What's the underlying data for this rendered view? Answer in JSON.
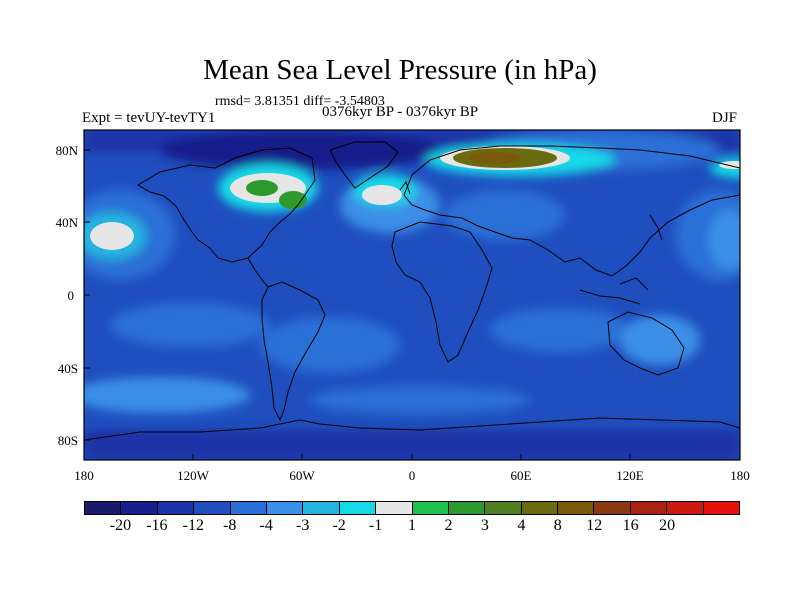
{
  "title": "Mean Sea Level Pressure (in hPa)",
  "stats": "rmsd= 3.81351 diff= -3.54803",
  "experiment": "Expt = tevUY-tevTY1",
  "period": "0376kyr BP - 0376kyr BP",
  "season": "DJF",
  "lat_labels": [
    "80N",
    "40N",
    "0",
    "40S",
    "80S"
  ],
  "lon_labels": [
    "180",
    "120W",
    "60W",
    "0",
    "60E",
    "120E",
    "180"
  ],
  "colorbar": {
    "colors": [
      "#1a1a6e",
      "#191f8a",
      "#1b33a6",
      "#1f4fbf",
      "#2a6fd6",
      "#3a8fe6",
      "#25b4e0",
      "#16d9e8",
      "#e6e6e6",
      "#1fc24a",
      "#2e9a2e",
      "#4f7f1f",
      "#6a6a10",
      "#7a5a0a",
      "#8a3a10",
      "#a8220e",
      "#cc1a10",
      "#e41208"
    ],
    "labels": [
      "-20",
      "-16",
      "-12",
      "-8",
      "-4",
      "-3",
      "-2",
      "-1",
      "1",
      "2",
      "3",
      "4",
      "8",
      "12",
      "16",
      "20"
    ]
  }
}
